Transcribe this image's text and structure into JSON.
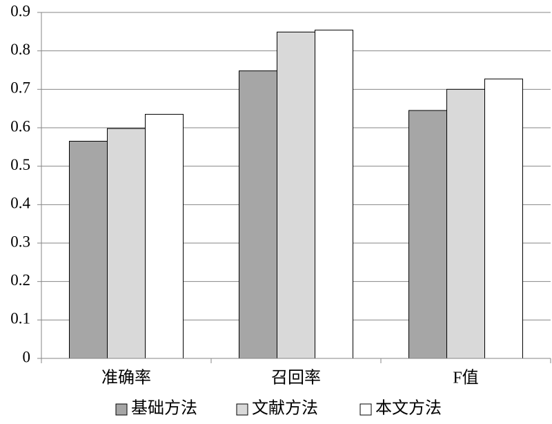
{
  "chart_data": {
    "type": "bar",
    "categories": [
      "准确率",
      "召回率",
      "F值"
    ],
    "series": [
      {
        "name": "基础方法",
        "color": "#a6a6a6",
        "values": [
          0.565,
          0.748,
          0.645
        ]
      },
      {
        "name": "文献方法",
        "color": "#d9d9d9",
        "values": [
          0.598,
          0.849,
          0.7
        ]
      },
      {
        "name": "本文方法",
        "color": "#ffffff",
        "values": [
          0.635,
          0.854,
          0.727
        ]
      }
    ],
    "ylim": [
      0,
      0.9
    ],
    "yticks": [
      0,
      0.1,
      0.2,
      0.3,
      0.4,
      0.5,
      0.6,
      0.7,
      0.8,
      0.9
    ],
    "grid": true,
    "legend": "bottom"
  }
}
